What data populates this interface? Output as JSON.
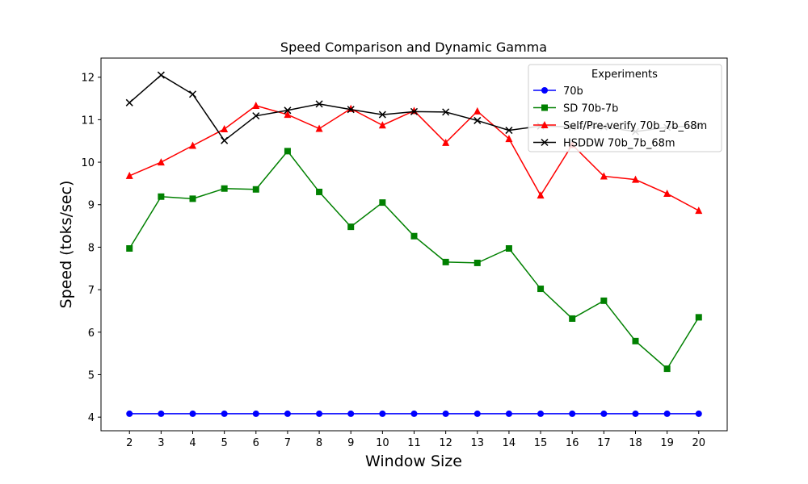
{
  "chart_data": {
    "type": "line",
    "title": "Speed Comparison and Dynamic Gamma",
    "xlabel": "Window Size",
    "ylabel": "Speed (toks/sec)",
    "x": [
      2,
      3,
      4,
      5,
      6,
      7,
      8,
      9,
      10,
      11,
      12,
      13,
      14,
      15,
      16,
      17,
      18,
      19,
      20
    ],
    "xlim": [
      1.1,
      20.9
    ],
    "ylim": [
      3.68,
      12.45
    ],
    "yticks": [
      4,
      5,
      6,
      7,
      8,
      9,
      10,
      11,
      12
    ],
    "grid": false,
    "legend": {
      "title": "Experiments",
      "position": "top-right"
    },
    "series": [
      {
        "name": "70b",
        "color": "#0000ff",
        "marker": "circle",
        "values": [
          4.08,
          4.08,
          4.08,
          4.08,
          4.08,
          4.08,
          4.08,
          4.08,
          4.08,
          4.08,
          4.08,
          4.08,
          4.08,
          4.08,
          4.08,
          4.08,
          4.08,
          4.08,
          4.08
        ]
      },
      {
        "name": "SD 70b-7b",
        "color": "#008000",
        "marker": "square",
        "values": [
          7.97,
          9.19,
          9.14,
          9.38,
          9.36,
          10.26,
          9.3,
          8.48,
          9.05,
          8.26,
          7.65,
          7.63,
          7.97,
          7.02,
          6.32,
          6.74,
          5.79,
          5.14,
          6.35
        ]
      },
      {
        "name": "Self/Pre-verify 70b_7b_68m",
        "color": "#ff0000",
        "marker": "triangle",
        "values": [
          9.68,
          10.0,
          10.39,
          10.78,
          11.33,
          11.12,
          10.79,
          11.26,
          10.87,
          11.21,
          10.46,
          11.2,
          10.55,
          9.22,
          10.41,
          9.67,
          9.59,
          9.26,
          8.86
        ]
      },
      {
        "name": "HSDDW 70b_7b_68m",
        "color": "#000000",
        "marker": "x",
        "values": [
          11.4,
          12.05,
          11.6,
          10.51,
          11.09,
          11.22,
          11.37,
          11.24,
          11.12,
          11.19,
          11.18,
          10.98,
          10.75,
          10.85,
          10.83,
          10.83,
          10.72,
          10.82,
          10.86
        ]
      }
    ]
  }
}
